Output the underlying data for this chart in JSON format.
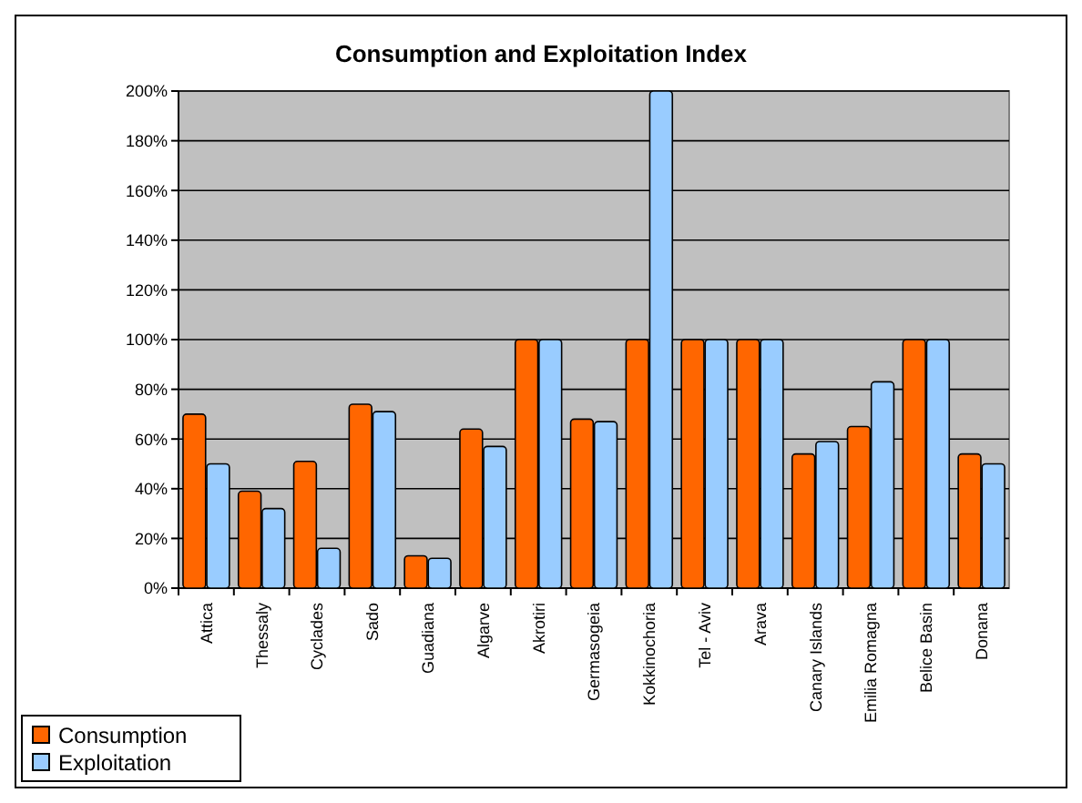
{
  "chart_data": {
    "type": "bar",
    "title": "Consumption and Exploitation Index",
    "categories": [
      "Attica",
      "Thessaly",
      "Cyclades",
      "Sado",
      "Guadiana",
      "Algarve",
      "Akrotiri",
      "Germasogeia",
      "Kokkinochoria",
      "Tel - Aviv",
      "Arava",
      "Canary Islands",
      "Emilia Romagna",
      "Belice Basin",
      "Donana"
    ],
    "series": [
      {
        "name": "Consumption",
        "color": "#ff6600",
        "values": [
          70,
          39,
          51,
          74,
          13,
          64,
          100,
          68,
          100,
          100,
          100,
          54,
          65,
          100,
          54
        ]
      },
      {
        "name": "Exploitation",
        "color": "#99ccff",
        "values": [
          50,
          32,
          16,
          71,
          12,
          57,
          100,
          67,
          200,
          100,
          100,
          59,
          83,
          100,
          50
        ]
      }
    ],
    "ylim": [
      0,
      200
    ],
    "yticks": [
      {
        "value": 0,
        "label": "0%"
      },
      {
        "value": 20,
        "label": "20%"
      },
      {
        "value": 40,
        "label": "40%"
      },
      {
        "value": 60,
        "label": "60%"
      },
      {
        "value": 80,
        "label": "80%"
      },
      {
        "value": 100,
        "label": "100%"
      },
      {
        "value": 120,
        "label": "120%"
      },
      {
        "value": 140,
        "label": "140%"
      },
      {
        "value": 160,
        "label": "160%"
      },
      {
        "value": 180,
        "label": "180%"
      },
      {
        "value": 200,
        "label": "200%"
      }
    ],
    "grid": "y",
    "legend": "bottom left"
  }
}
